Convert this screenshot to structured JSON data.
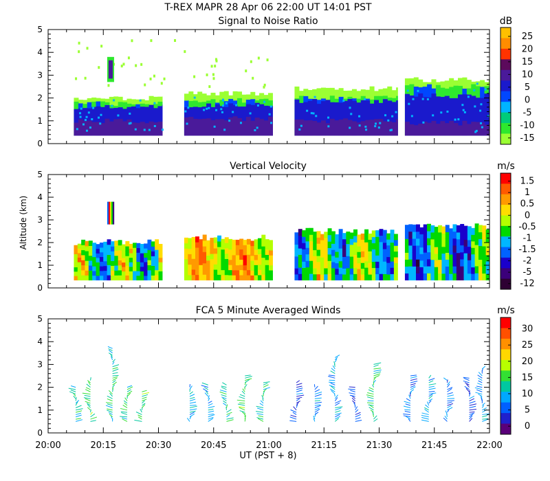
{
  "figure": {
    "header": "T-REX  MAPR 28 Apr 06  22:00 UT  14:01  PST",
    "xlabel": "UT  (PST + 8)",
    "xticks": [
      "20:00",
      "20:15",
      "20:30",
      "20:45",
      "21:00",
      "21:15",
      "21:30",
      "21:45",
      "22:00"
    ],
    "yticks": [
      "0",
      "1",
      "2",
      "3",
      "4",
      "5"
    ],
    "ylabel": "Altitude (km)"
  },
  "chart_data": [
    {
      "type": "heatmap",
      "title": "Signal to Noise Ratio",
      "unit": "dB",
      "xlim_minutes": [
        0,
        120
      ],
      "ylim_km": [
        0,
        5
      ],
      "colorbar_ticks": [
        "25",
        "20",
        "15",
        "10",
        "5",
        "0",
        "-5",
        "-10",
        "-15"
      ],
      "colorbar_colors": [
        "#ffc000",
        "#ff8c00",
        "#ff3300",
        "#5c0a5c",
        "#4a1a9a",
        "#1a1acc",
        "#0047ff",
        "#00b4ff",
        "#00cc7a",
        "#2ee82e",
        "#9bff33"
      ],
      "data_segments_minutes": [
        [
          7,
          31
        ],
        [
          37,
          61
        ],
        [
          67,
          95
        ],
        [
          97,
          120
        ]
      ],
      "base_height_km": 0.35,
      "layers_km": [
        {
          "name": "deep",
          "value_db": 10,
          "top": [
            1.0,
            1.1,
            1.0,
            0.9
          ]
        },
        {
          "name": "strong",
          "value_db": 2,
          "top": [
            1.6,
            1.7,
            1.85,
            2.1
          ]
        },
        {
          "name": "moderate",
          "value_db": -8,
          "top": [
            1.75,
            1.9,
            2.0,
            2.5
          ]
        },
        {
          "name": "weak",
          "value_db": -14,
          "top": [
            2.0,
            2.2,
            2.4,
            2.8
          ]
        }
      ],
      "plume": {
        "x_minutes": 17,
        "bottom_km": 2.7,
        "top_km": 3.8
      }
    },
    {
      "type": "heatmap",
      "title": "Vertical Velocity",
      "unit": "m/s",
      "xlim_minutes": [
        0,
        120
      ],
      "ylim_km": [
        0,
        5
      ],
      "colorbar_ticks": [
        "1.5",
        "1",
        "0.5",
        "0",
        "-0.5",
        "-1",
        "-1.5",
        "-2",
        "-5",
        "-12"
      ],
      "colorbar_colors": [
        "#ff0000",
        "#ff5a00",
        "#ff9a00",
        "#ffdd00",
        "#b4ff00",
        "#00d900",
        "#00b7ff",
        "#0062ff",
        "#1a00cc",
        "#3b007a",
        "#2e0033"
      ],
      "data_segments_minutes": [
        [
          7,
          31
        ],
        [
          37,
          61
        ],
        [
          67,
          95
        ],
        [
          97,
          120
        ]
      ],
      "base_height_km": 0.35,
      "top_height_km": [
        2.0,
        2.2,
        2.5,
        2.7
      ],
      "plume": {
        "x_minutes": 17,
        "bottom_km": 2.8,
        "top_km": 3.8
      }
    },
    {
      "type": "scatter",
      "title": "FCA 5 Minute Averaged Winds",
      "unit": "m/s",
      "xlim_minutes": [
        0,
        120
      ],
      "ylim_km": [
        0,
        5
      ],
      "colorbar_ticks": [
        "30",
        "25",
        "20",
        "15",
        "10",
        "5",
        "0"
      ],
      "colorbar_colors": [
        "#ff0000",
        "#ff5000",
        "#ff9000",
        "#ffd800",
        "#b8ff00",
        "#33e033",
        "#00c8a0",
        "#00a8ff",
        "#0060ff",
        "#2020cc",
        "#5a007a"
      ],
      "profiles": [
        {
          "x": 7.5,
          "top_km": 2.0,
          "speed": 11
        },
        {
          "x": 11.5,
          "top_km": 2.3,
          "speed": 14
        },
        {
          "x": 17.5,
          "top_km": 3.7,
          "speed": 12
        },
        {
          "x": 21.5,
          "top_km": 2.0,
          "speed": 13
        },
        {
          "x": 25.5,
          "top_km": 1.8,
          "speed": 14
        },
        {
          "x": 38.5,
          "top_km": 2.0,
          "speed": 10
        },
        {
          "x": 43.5,
          "top_km": 2.1,
          "speed": 9
        },
        {
          "x": 48.5,
          "top_km": 2.1,
          "speed": 13
        },
        {
          "x": 53.5,
          "top_km": 2.5,
          "speed": 14
        },
        {
          "x": 58.5,
          "top_km": 2.2,
          "speed": 12
        },
        {
          "x": 67.5,
          "top_km": 2.2,
          "speed": 5
        },
        {
          "x": 72.5,
          "top_km": 2.0,
          "speed": 8
        },
        {
          "x": 78.0,
          "top_km": 3.3,
          "speed": 9
        },
        {
          "x": 83.5,
          "top_km": 2.0,
          "speed": 5
        },
        {
          "x": 88.5,
          "top_km": 3.0,
          "speed": 13
        },
        {
          "x": 98.5,
          "top_km": 2.5,
          "speed": 6
        },
        {
          "x": 103.5,
          "top_km": 2.4,
          "speed": 9
        },
        {
          "x": 108.5,
          "top_km": 2.3,
          "speed": 7
        },
        {
          "x": 114.5,
          "top_km": 2.4,
          "speed": 5
        },
        {
          "x": 118.0,
          "top_km": 2.8,
          "speed": 8
        }
      ]
    }
  ]
}
